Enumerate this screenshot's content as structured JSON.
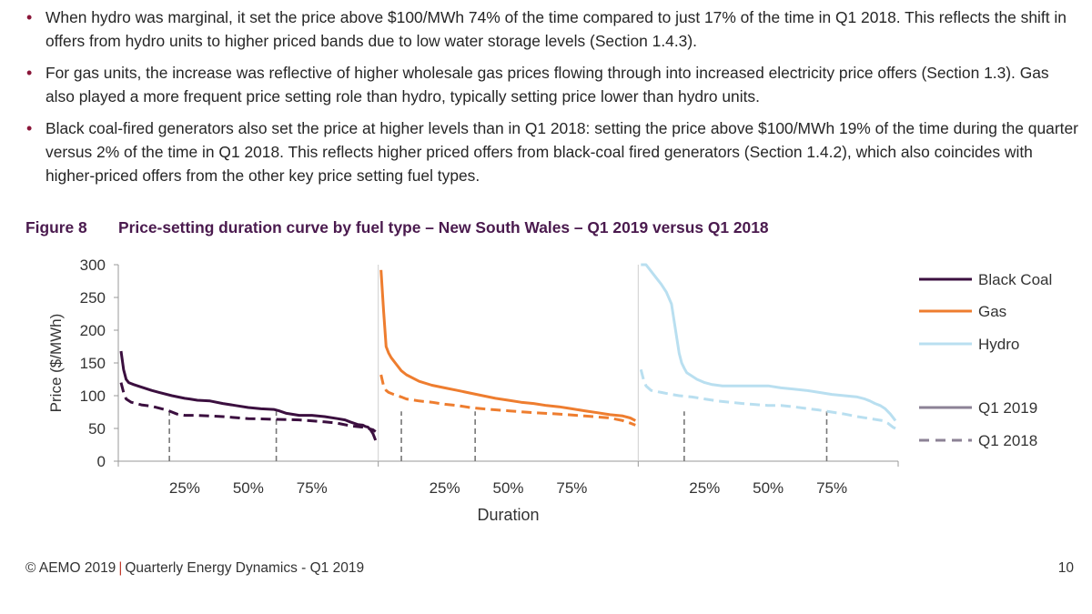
{
  "bullets": [
    "When hydro was marginal, it set the price above $100/MWh 74% of the time compared to just 17% of the time in Q1 2018. This reflects the shift in offers from hydro units to higher priced bands due to low water storage levels (Section 1.4.3).",
    "For gas units, the increase was reflective of higher wholesale gas prices flowing through into increased electricity price offers (Section 1.3). Gas also played a more frequent price setting role than hydro, typically setting price lower than hydro units.",
    "Black coal-fired generators also set the price at higher levels than in Q1 2018: setting the price above $100/MWh 19% of the time during the quarter versus 2% of the time in Q1 2018. This reflects higher priced offers from black-coal fired generators (Section 1.4.2), which also coincides with higher-priced offers from the other key price setting fuel types."
  ],
  "figure": {
    "number": "Figure 8",
    "title": "Price-setting duration curve by fuel type – New South Wales – Q1 2019 versus Q1 2018"
  },
  "chart_data": {
    "type": "line",
    "ylabel": "Price ($/MWh)",
    "xlabel": "Duration",
    "ylim": [
      0,
      300
    ],
    "yticks": [
      "0",
      "50",
      "100",
      "150",
      "200",
      "250",
      "300"
    ],
    "xticks": [
      "25%",
      "50%",
      "75%"
    ],
    "panels": [
      {
        "fuel": "Black Coal",
        "color": "#3b0f3f",
        "q1_2019": {
          "x": [
            0,
            1,
            2,
            3,
            5,
            8,
            12,
            15,
            20,
            25,
            27,
            30,
            35,
            40,
            45,
            50,
            55,
            60,
            62,
            65,
            70,
            75,
            80,
            85,
            88,
            90,
            93,
            95,
            96,
            97,
            98,
            99,
            100
          ],
          "y": [
            168,
            140,
            125,
            120,
            117,
            113,
            108,
            105,
            100,
            96,
            95,
            93,
            92,
            88,
            85,
            82,
            80,
            79,
            77,
            73,
            70,
            70,
            68,
            65,
            63,
            60,
            56,
            55,
            53,
            52,
            48,
            42,
            32
          ]
        },
        "q1_2018": {
          "x": [
            0,
            1,
            2,
            4,
            8,
            12,
            18,
            22,
            25,
            30,
            40,
            50,
            60,
            70,
            80,
            85,
            90,
            95,
            97,
            99,
            100
          ],
          "y": [
            120,
            105,
            95,
            90,
            86,
            84,
            78,
            72,
            70,
            70,
            68,
            65,
            64,
            63,
            60,
            58,
            54,
            52,
            50,
            48,
            45
          ]
        },
        "markers": [
          19,
          61
        ]
      },
      {
        "fuel": "Gas",
        "color": "#ee7d2f",
        "q1_2019": {
          "x": [
            0,
            1,
            2,
            3,
            4,
            6,
            8,
            10,
            15,
            20,
            25,
            30,
            35,
            40,
            45,
            50,
            55,
            60,
            65,
            70,
            75,
            80,
            85,
            90,
            95,
            98,
            100
          ],
          "y": [
            292,
            230,
            175,
            165,
            158,
            148,
            138,
            132,
            122,
            116,
            112,
            108,
            104,
            100,
            96,
            93,
            90,
            88,
            85,
            83,
            80,
            77,
            74,
            71,
            69,
            66,
            62
          ]
        },
        "q1_2018": {
          "x": [
            0,
            1,
            2,
            3,
            5,
            8,
            10,
            15,
            20,
            25,
            30,
            35,
            40,
            50,
            60,
            70,
            80,
            90,
            95,
            98,
            100
          ],
          "y": [
            132,
            115,
            108,
            105,
            102,
            98,
            95,
            92,
            90,
            87,
            85,
            82,
            80,
            77,
            74,
            72,
            69,
            66,
            62,
            58,
            55
          ]
        },
        "markers": [
          8,
          37
        ]
      },
      {
        "fuel": "Hydro",
        "color": "#b9dff0",
        "q1_2019": {
          "x": [
            0,
            2,
            4,
            6,
            8,
            10,
            12,
            13,
            14,
            15,
            16,
            17,
            18,
            20,
            22,
            25,
            28,
            32,
            36,
            40,
            45,
            50,
            55,
            60,
            65,
            70,
            75,
            80,
            85,
            88,
            90,
            92,
            94,
            96,
            98,
            100
          ],
          "y": [
            300,
            300,
            290,
            280,
            270,
            258,
            240,
            215,
            190,
            165,
            150,
            142,
            135,
            130,
            125,
            120,
            117,
            115,
            115,
            115,
            115,
            115,
            112,
            110,
            108,
            105,
            102,
            100,
            98,
            95,
            92,
            88,
            85,
            80,
            72,
            62
          ]
        },
        "q1_2018": {
          "x": [
            0,
            1,
            2,
            4,
            8,
            12,
            15,
            20,
            25,
            30,
            35,
            40,
            50,
            55,
            60,
            70,
            80,
            85,
            90,
            95,
            97,
            99,
            100
          ],
          "y": [
            140,
            125,
            115,
            108,
            105,
            102,
            100,
            98,
            95,
            92,
            90,
            88,
            85,
            85,
            83,
            78,
            72,
            68,
            65,
            62,
            58,
            52,
            50
          ]
        },
        "markers": [
          17,
          73
        ]
      }
    ],
    "legend": [
      "Black Coal",
      "Gas",
      "Hydro",
      "Q1 2019",
      "Q1 2018"
    ],
    "legend_position": "right"
  },
  "footer": {
    "left": "© AEMO 2019",
    "separator": "|",
    "right": "Quarterly Energy Dynamics - Q1 2019",
    "page": "10"
  }
}
